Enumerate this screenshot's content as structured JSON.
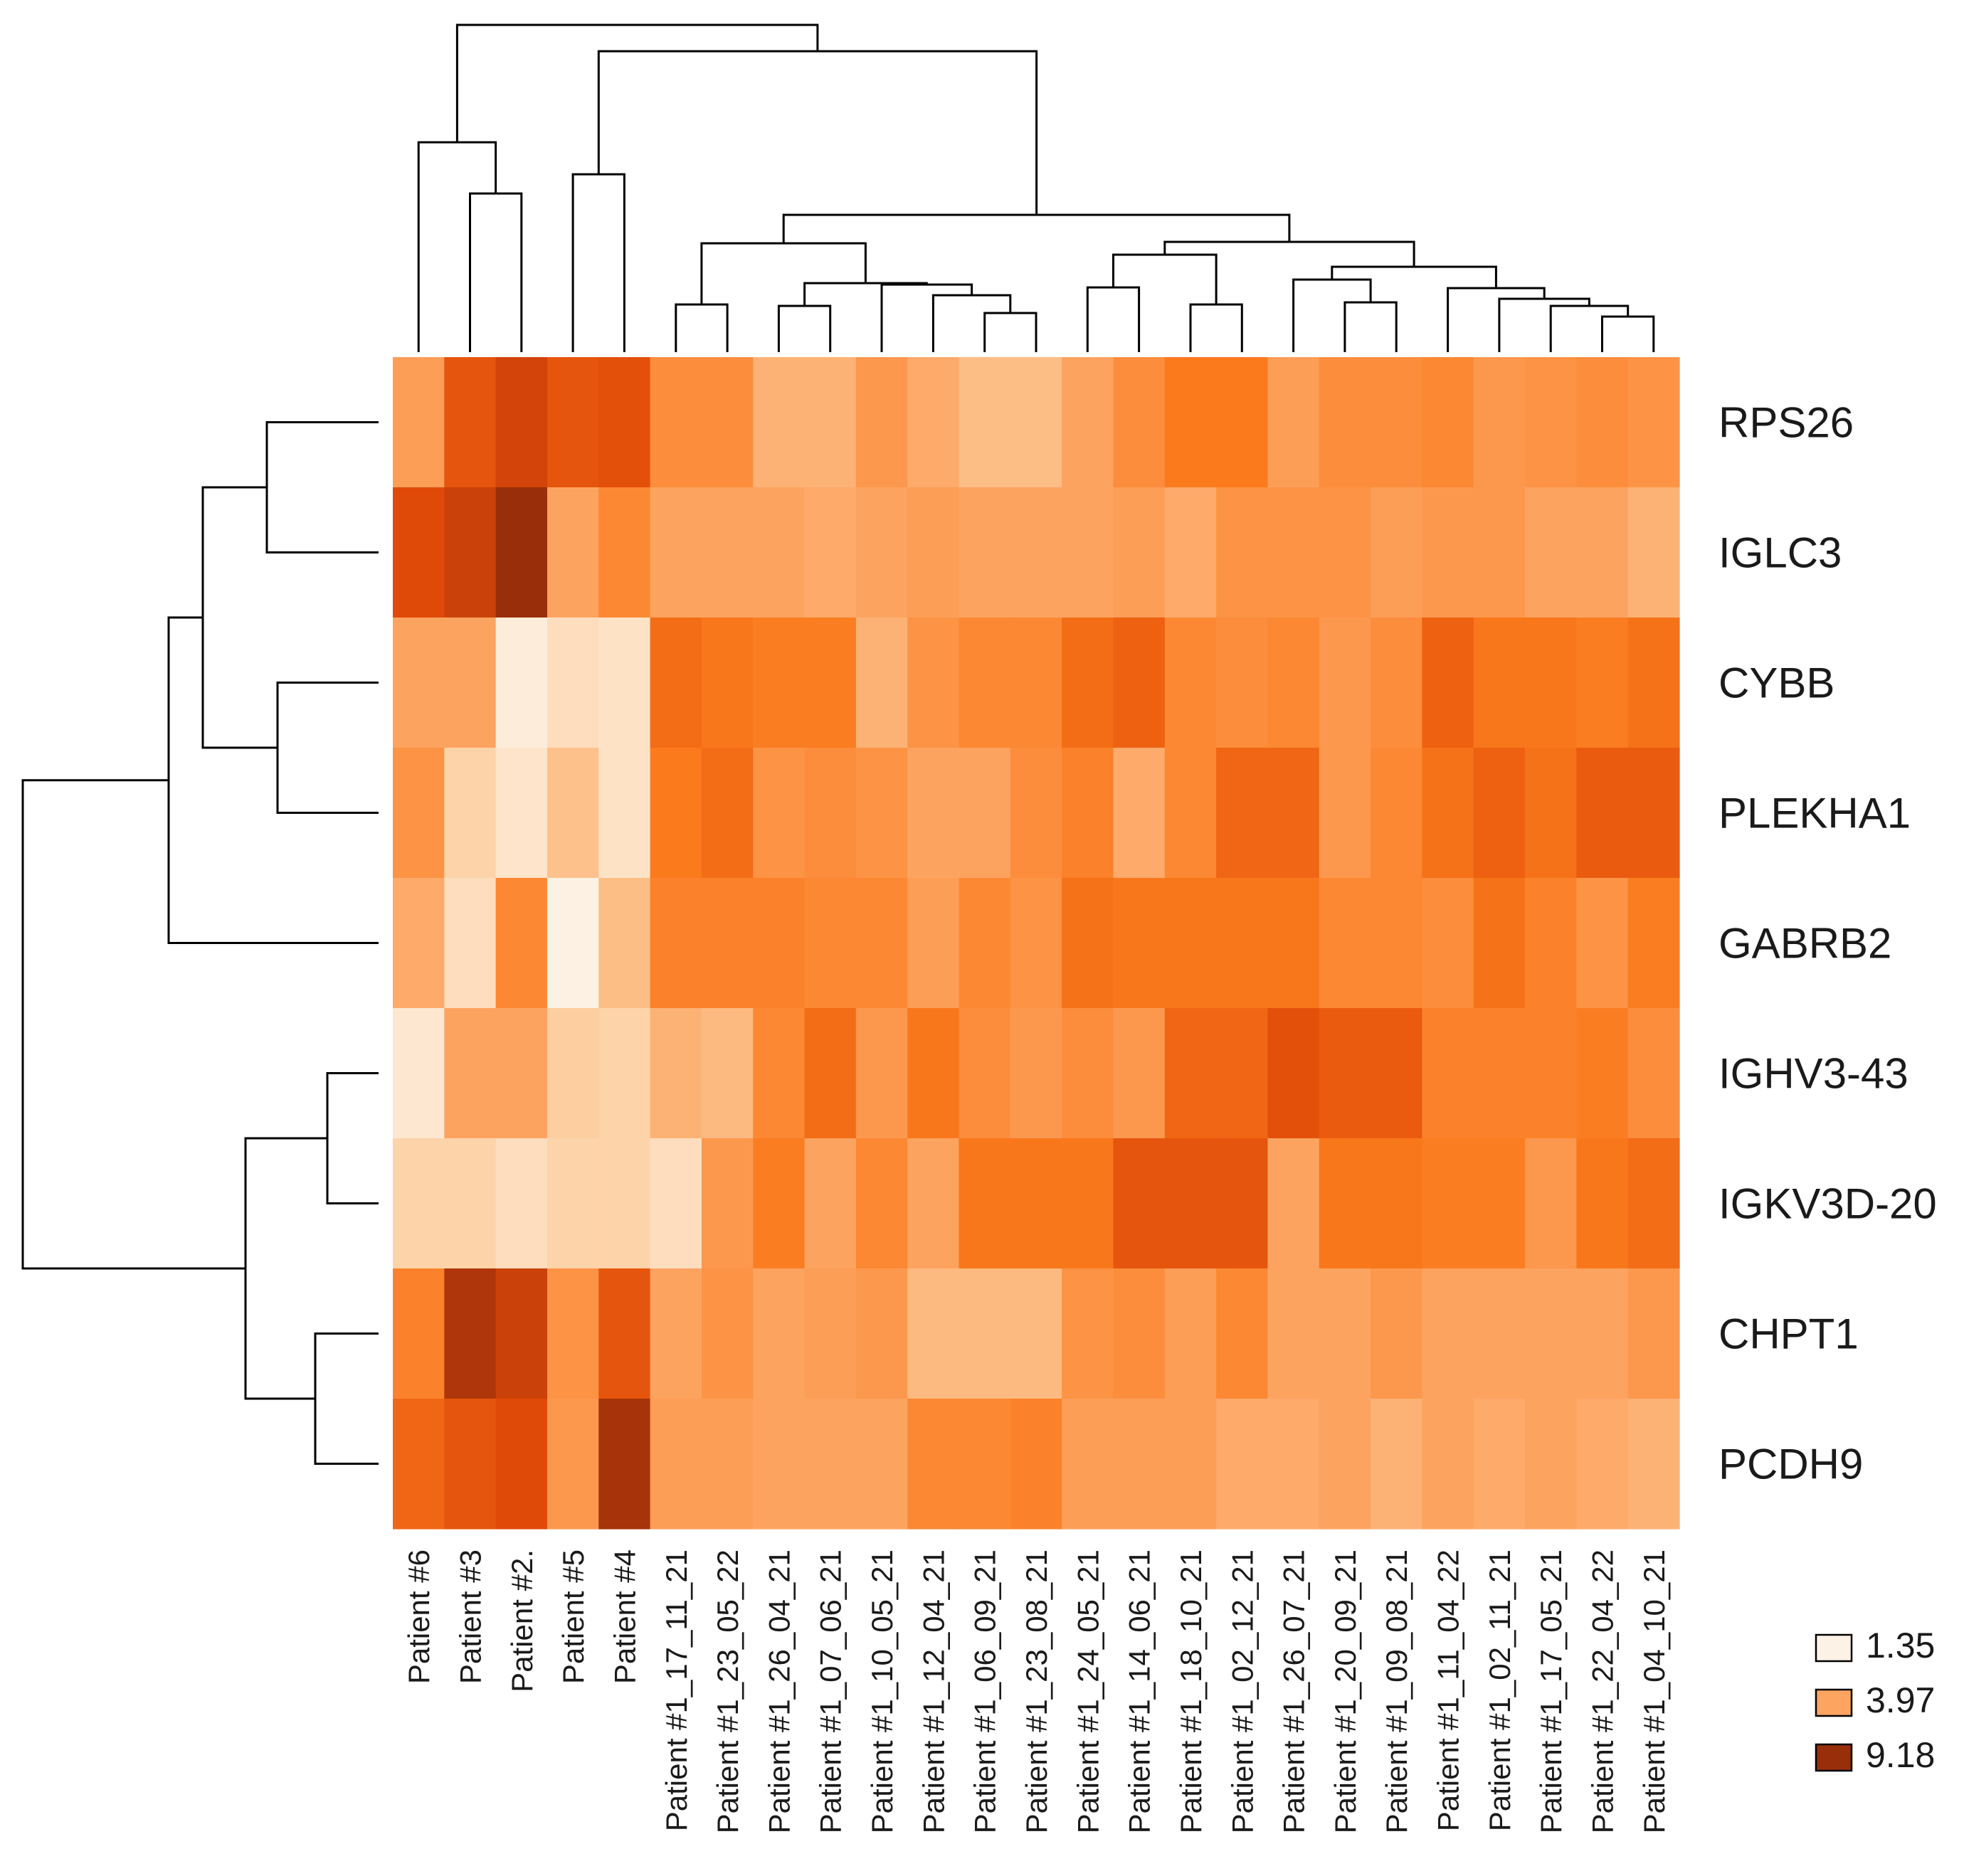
{
  "chart_data": {
    "type": "heatmap",
    "title": "",
    "columns": [
      "Patient #6",
      "Patient #3",
      "Patient #2.",
      "Patient #5",
      "Patient #4",
      "Patient #1_17_11_21",
      "Patient #1_23_05_22",
      "Patient #1_26_04_21",
      "Patient #1_07_06_21",
      "Patient #1_10_05_21",
      "Patient #1_12_04_21",
      "Patient #1_06_09_21",
      "Patient #1_23_08_21",
      "Patient #1_24_05_21",
      "Patient #1_14_06_21",
      "Patient #1_18_10_21",
      "Patient #1_02_12_21",
      "Patient #1_26_07_21",
      "Patient #1_20_09_21",
      "Patient #1_09_08_21",
      "Patient #1_11_04_22",
      "Patient #1_02_11_21",
      "Patient #1_17_05_21",
      "Patient #1_22_04_22",
      "Patient #1_04_10_21"
    ],
    "rows": [
      "RPS26",
      "IGLC3",
      "CYBB",
      "PLEKHA1",
      "GABRB2",
      "IGHV3-43",
      "IGKV3D-20",
      "CHPT1",
      "PCDH9"
    ],
    "values": [
      [
        4.2,
        6.8,
        7.6,
        6.8,
        7.0,
        4.8,
        4.8,
        3.6,
        3.6,
        4.4,
        3.8,
        3.3,
        3.3,
        4.0,
        4.8,
        5.5,
        5.5,
        4.2,
        4.8,
        4.8,
        5.0,
        4.4,
        4.6,
        4.8,
        4.6
      ],
      [
        7.2,
        7.8,
        9.2,
        4.0,
        5.0,
        4.0,
        4.0,
        4.0,
        3.8,
        4.0,
        4.2,
        4.0,
        4.0,
        4.0,
        4.2,
        3.8,
        4.6,
        4.6,
        4.6,
        4.2,
        4.4,
        4.4,
        4.0,
        4.0,
        3.6
      ],
      [
        4.0,
        4.0,
        1.6,
        2.2,
        2.0,
        6.0,
        5.6,
        5.4,
        5.4,
        3.6,
        4.6,
        5.0,
        5.0,
        6.0,
        6.4,
        5.0,
        4.8,
        5.0,
        4.4,
        4.8,
        6.4,
        5.6,
        5.6,
        5.4,
        5.8
      ],
      [
        4.6,
        2.6,
        1.9,
        3.2,
        2.0,
        5.5,
        6.0,
        4.6,
        4.8,
        4.6,
        4.0,
        4.0,
        4.8,
        5.2,
        3.8,
        5.0,
        6.2,
        6.2,
        4.4,
        5.0,
        5.8,
        6.4,
        5.8,
        6.6,
        6.6
      ],
      [
        3.8,
        2.2,
        5.0,
        1.4,
        3.3,
        5.2,
        5.2,
        5.2,
        5.0,
        5.0,
        4.2,
        5.0,
        4.6,
        5.8,
        5.6,
        5.6,
        5.6,
        5.6,
        5.0,
        5.0,
        4.8,
        5.8,
        5.2,
        4.6,
        5.4
      ],
      [
        1.8,
        4.0,
        4.0,
        2.8,
        2.6,
        3.6,
        3.4,
        5.0,
        6.0,
        4.4,
        5.6,
        4.8,
        4.4,
        4.8,
        4.4,
        6.2,
        6.2,
        7.0,
        6.6,
        6.6,
        5.2,
        5.2,
        5.2,
        5.4,
        4.8
      ],
      [
        2.6,
        2.6,
        2.2,
        2.6,
        2.6,
        2.2,
        4.4,
        5.4,
        4.0,
        5.0,
        4.0,
        5.6,
        5.6,
        5.6,
        6.8,
        6.8,
        6.8,
        4.0,
        5.6,
        5.6,
        5.4,
        5.4,
        4.4,
        5.6,
        6.0
      ],
      [
        5.2,
        8.6,
        7.8,
        4.6,
        6.8,
        4.0,
        4.6,
        4.0,
        4.2,
        4.4,
        3.4,
        3.4,
        3.4,
        4.6,
        4.8,
        4.2,
        5.0,
        4.0,
        4.0,
        4.4,
        4.0,
        4.0,
        4.0,
        4.0,
        4.4
      ],
      [
        6.2,
        6.8,
        7.2,
        4.4,
        8.8,
        4.2,
        4.2,
        4.0,
        4.0,
        4.0,
        5.0,
        5.0,
        5.2,
        4.2,
        4.2,
        4.2,
        3.8,
        3.8,
        4.0,
        3.6,
        4.0,
        3.8,
        4.0,
        3.8,
        3.6
      ]
    ],
    "legend": [
      {
        "label": "1.35",
        "color": "#fdf2e6"
      },
      {
        "label": "3.97",
        "color": "#fda461"
      },
      {
        "label": "9.18",
        "color": "#992e0b"
      }
    ],
    "legend_position": "bottom-right",
    "value_range": [
      1.35,
      9.18
    ]
  }
}
